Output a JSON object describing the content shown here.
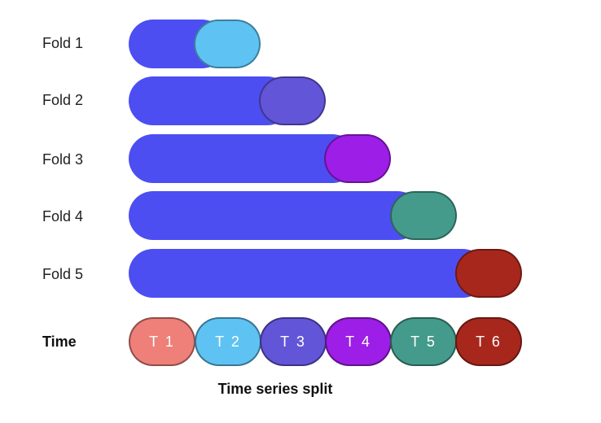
{
  "folds": [
    {
      "label": "Fold 1",
      "test_segment": "T 2"
    },
    {
      "label": "Fold 2",
      "test_segment": "T 3"
    },
    {
      "label": "Fold 3",
      "test_segment": "T 4"
    },
    {
      "label": "Fold 4",
      "test_segment": "T 5"
    },
    {
      "label": "Fold 5",
      "test_segment": "T 6"
    }
  ],
  "time_axis": {
    "label": "Time",
    "segments": [
      {
        "label": "T 1",
        "color": "#ee8079"
      },
      {
        "label": "T 2",
        "color": "#5ec3f3"
      },
      {
        "label": "T 3",
        "color": "#6355d8"
      },
      {
        "label": "T 4",
        "color": "#9d1ee6"
      },
      {
        "label": "T 5",
        "color": "#449b8b"
      },
      {
        "label": "T 6",
        "color": "#a8271d"
      }
    ]
  },
  "caption": "Time series split",
  "colors": {
    "train": "#4c4ef1"
  }
}
